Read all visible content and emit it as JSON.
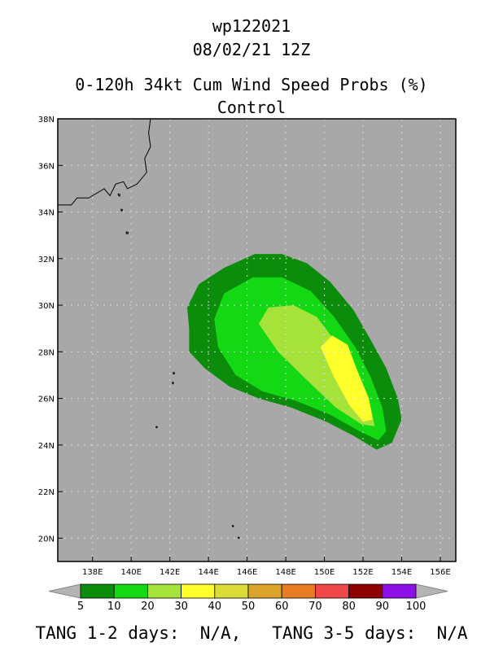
{
  "title_lines": [
    "wp122021",
    "08/02/21 12Z",
    "0-120h 34kt Cum Wind Speed Probs (%)",
    "Control"
  ],
  "footer": "TANG 1-2 days:  N/A,   TANG 3-5 days:  N/A",
  "colors": {
    "background": "#a8a8a8",
    "coast": "#000000",
    "grid": "#d8d8d8",
    "levels": [
      "#0b8c0b",
      "#13d813",
      "#a6e33a",
      "#ffff2b",
      "#dcdc38",
      "#dca42c",
      "#e87c22",
      "#f04848",
      "#8e0000",
      "#8c10e6"
    ]
  },
  "chart_data": {
    "type": "heatmap",
    "title": "0-120h 34kt Cum Wind Speed Probs (%)",
    "subtitle": "Control",
    "storm_id": "wp122021",
    "datetime": "08/02/21 12Z",
    "xlim": [
      136.2,
      156.8
    ],
    "ylim": [
      19,
      38
    ],
    "x_ticks": [
      138,
      140,
      142,
      144,
      146,
      148,
      150,
      152,
      154,
      156
    ],
    "x_tick_labels": [
      "138E",
      "140E",
      "142E",
      "144E",
      "146E",
      "148E",
      "150E",
      "152E",
      "154E",
      "156E"
    ],
    "y_ticks": [
      20,
      22,
      24,
      26,
      28,
      30,
      32,
      34,
      36,
      38
    ],
    "y_tick_labels": [
      "20N",
      "22N",
      "24N",
      "26N",
      "28N",
      "30N",
      "32N",
      "34N",
      "36N",
      "38N"
    ],
    "colorbar_levels": [
      5,
      10,
      20,
      30,
      40,
      50,
      60,
      70,
      80,
      90,
      100
    ],
    "contours": [
      {
        "level": 5,
        "polygon": [
          [
            143.0,
            29.0
          ],
          [
            142.9,
            29.9
          ],
          [
            143.5,
            30.9
          ],
          [
            144.8,
            31.6
          ],
          [
            146.4,
            32.2
          ],
          [
            147.8,
            32.2
          ],
          [
            149.1,
            31.8
          ],
          [
            150.3,
            31.0
          ],
          [
            151.5,
            29.8
          ],
          [
            152.4,
            28.5
          ],
          [
            153.2,
            27.3
          ],
          [
            153.8,
            26.0
          ],
          [
            154.0,
            25.1
          ],
          [
            153.5,
            24.1
          ],
          [
            152.7,
            23.8
          ],
          [
            151.5,
            24.4
          ],
          [
            150.1,
            25.0
          ],
          [
            148.3,
            25.6
          ],
          [
            146.6,
            26.0
          ],
          [
            145.1,
            26.5
          ],
          [
            143.8,
            27.3
          ],
          [
            143.0,
            28.0
          ]
        ]
      },
      {
        "level": 10,
        "polygon": [
          [
            144.3,
            29.4
          ],
          [
            144.8,
            30.5
          ],
          [
            146.3,
            31.2
          ],
          [
            147.8,
            31.2
          ],
          [
            149.3,
            30.6
          ],
          [
            150.5,
            29.5
          ],
          [
            151.6,
            28.2
          ],
          [
            152.4,
            26.9
          ],
          [
            153.0,
            25.6
          ],
          [
            153.2,
            24.6
          ],
          [
            152.8,
            24.2
          ],
          [
            151.8,
            24.6
          ],
          [
            150.3,
            25.3
          ],
          [
            148.5,
            25.9
          ],
          [
            146.8,
            26.3
          ],
          [
            145.4,
            27.0
          ],
          [
            144.5,
            28.2
          ]
        ]
      },
      {
        "level": 20,
        "polygon": [
          [
            146.6,
            29.2
          ],
          [
            147.1,
            29.9
          ],
          [
            148.4,
            30.0
          ],
          [
            149.6,
            29.5
          ],
          [
            150.7,
            28.3
          ],
          [
            151.6,
            26.9
          ],
          [
            152.4,
            25.6
          ],
          [
            152.6,
            24.8
          ],
          [
            151.9,
            24.9
          ],
          [
            150.6,
            25.6
          ],
          [
            149.2,
            26.7
          ],
          [
            147.6,
            28.0
          ]
        ]
      },
      {
        "level": 30,
        "polygon": [
          [
            149.8,
            28.2
          ],
          [
            150.4,
            28.7
          ],
          [
            151.2,
            28.3
          ],
          [
            151.7,
            27.2
          ],
          [
            152.3,
            26.0
          ],
          [
            152.5,
            25.1
          ],
          [
            152.0,
            25.0
          ],
          [
            151.3,
            25.7
          ],
          [
            150.5,
            26.9
          ]
        ]
      }
    ],
    "land": [
      {
        "name": "Honshu",
        "polygon": [
          [
            136.2,
            38.0
          ],
          [
            141.0,
            38.0
          ],
          [
            140.9,
            37.4
          ],
          [
            141.0,
            36.8
          ],
          [
            140.7,
            36.3
          ],
          [
            140.8,
            35.7
          ],
          [
            140.3,
            35.2
          ],
          [
            139.8,
            35.0
          ],
          [
            139.6,
            35.3
          ],
          [
            139.2,
            35.2
          ],
          [
            138.9,
            34.7
          ],
          [
            138.6,
            35.0
          ],
          [
            137.8,
            34.6
          ],
          [
            137.2,
            34.6
          ],
          [
            136.9,
            34.3
          ],
          [
            136.2,
            34.3
          ]
        ]
      },
      {
        "name": "Oshima",
        "polygon": [
          [
            139.33,
            34.78
          ],
          [
            139.42,
            34.75
          ],
          [
            139.4,
            34.68
          ],
          [
            139.33,
            34.72
          ]
        ]
      },
      {
        "name": "Miyakejima",
        "polygon": [
          [
            139.48,
            34.12
          ],
          [
            139.55,
            34.1
          ],
          [
            139.52,
            34.04
          ],
          [
            139.47,
            34.07
          ]
        ]
      },
      {
        "name": "Hachijojima",
        "polygon": [
          [
            139.75,
            33.15
          ],
          [
            139.85,
            33.12
          ],
          [
            139.82,
            33.06
          ],
          [
            139.74,
            33.08
          ]
        ]
      },
      {
        "name": "Chichijima",
        "polygon": [
          [
            142.18,
            27.12
          ],
          [
            142.24,
            27.1
          ],
          [
            142.22,
            27.04
          ],
          [
            142.17,
            27.06
          ]
        ]
      },
      {
        "name": "Hahajima",
        "polygon": [
          [
            142.14,
            26.7
          ],
          [
            142.19,
            26.68
          ],
          [
            142.17,
            26.62
          ],
          [
            142.13,
            26.65
          ]
        ]
      },
      {
        "name": "Minamitorishima_dot",
        "polygon": [
          [
            141.3,
            24.8
          ],
          [
            141.35,
            24.78
          ],
          [
            141.33,
            24.74
          ],
          [
            141.28,
            24.76
          ]
        ]
      },
      {
        "name": "Farallon_dot1",
        "polygon": [
          [
            145.25,
            20.55
          ],
          [
            145.3,
            20.53
          ],
          [
            145.28,
            20.49
          ],
          [
            145.23,
            20.51
          ]
        ]
      },
      {
        "name": "Farallon_dot2",
        "polygon": [
          [
            145.55,
            20.05
          ],
          [
            145.6,
            20.03
          ],
          [
            145.58,
            19.99
          ],
          [
            145.53,
            20.01
          ]
        ]
      }
    ]
  }
}
